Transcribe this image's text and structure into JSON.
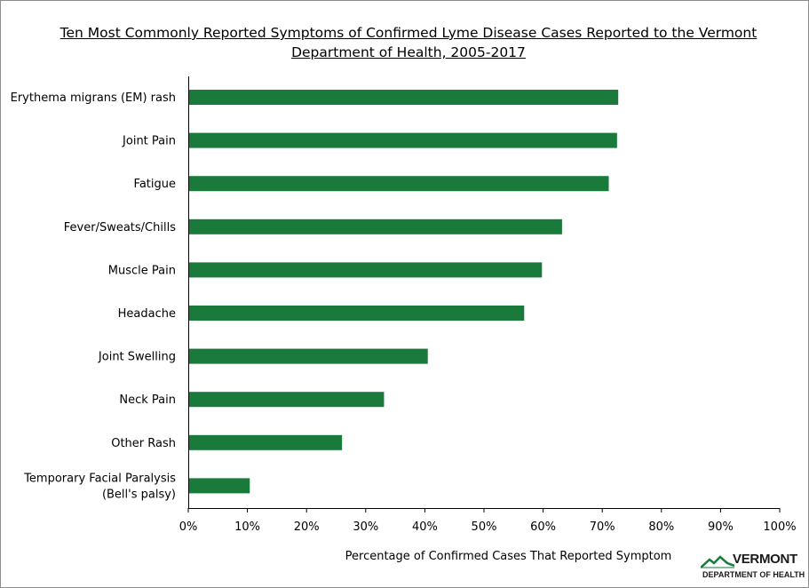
{
  "title": "Ten Most Commonly Reported Symptoms of Confirmed Lyme Disease Cases Reported to the Vermont Department of Health, 2005-2017",
  "xaxis_title": "Percentage of Confirmed Cases That Reported Symptom",
  "logo": {
    "name": "VERMONT",
    "subtitle": "DEPARTMENT OF HEALTH"
  },
  "colors": {
    "bar": "#1a7a3c",
    "axis": "#000000",
    "logo_green": "#1a7a3c"
  },
  "chart_data": {
    "type": "bar",
    "orientation": "horizontal",
    "title": "Ten Most Commonly Reported Symptoms of Confirmed Lyme Disease Cases Reported to the Vermont Department of Health, 2005-2017",
    "xlabel": "Percentage of Confirmed Cases That Reported Symptom",
    "ylabel": "",
    "categories": [
      [
        "Erythema migrans (EM) rash"
      ],
      [
        "Joint Pain"
      ],
      [
        "Fatigue"
      ],
      [
        "Fever/Sweats/Chills"
      ],
      [
        "Muscle Pain"
      ],
      [
        "Headache"
      ],
      [
        "Joint Swelling"
      ],
      [
        "Neck Pain"
      ],
      [
        "Other Rash"
      ],
      [
        "Temporary Facial Paralysis",
        "(Bell's palsy)"
      ]
    ],
    "values": [
      72.7,
      72.5,
      71.1,
      63.2,
      59.8,
      56.8,
      40.5,
      33.1,
      26.0,
      10.4
    ],
    "xlim": [
      0,
      100
    ],
    "ticks": [
      0,
      10,
      20,
      30,
      40,
      50,
      60,
      70,
      80,
      90,
      100
    ],
    "tick_labels": [
      "0%",
      "10%",
      "20%",
      "30%",
      "40%",
      "50%",
      "60%",
      "70%",
      "80%",
      "90%",
      "100%"
    ],
    "grid": false,
    "legend": "none"
  }
}
